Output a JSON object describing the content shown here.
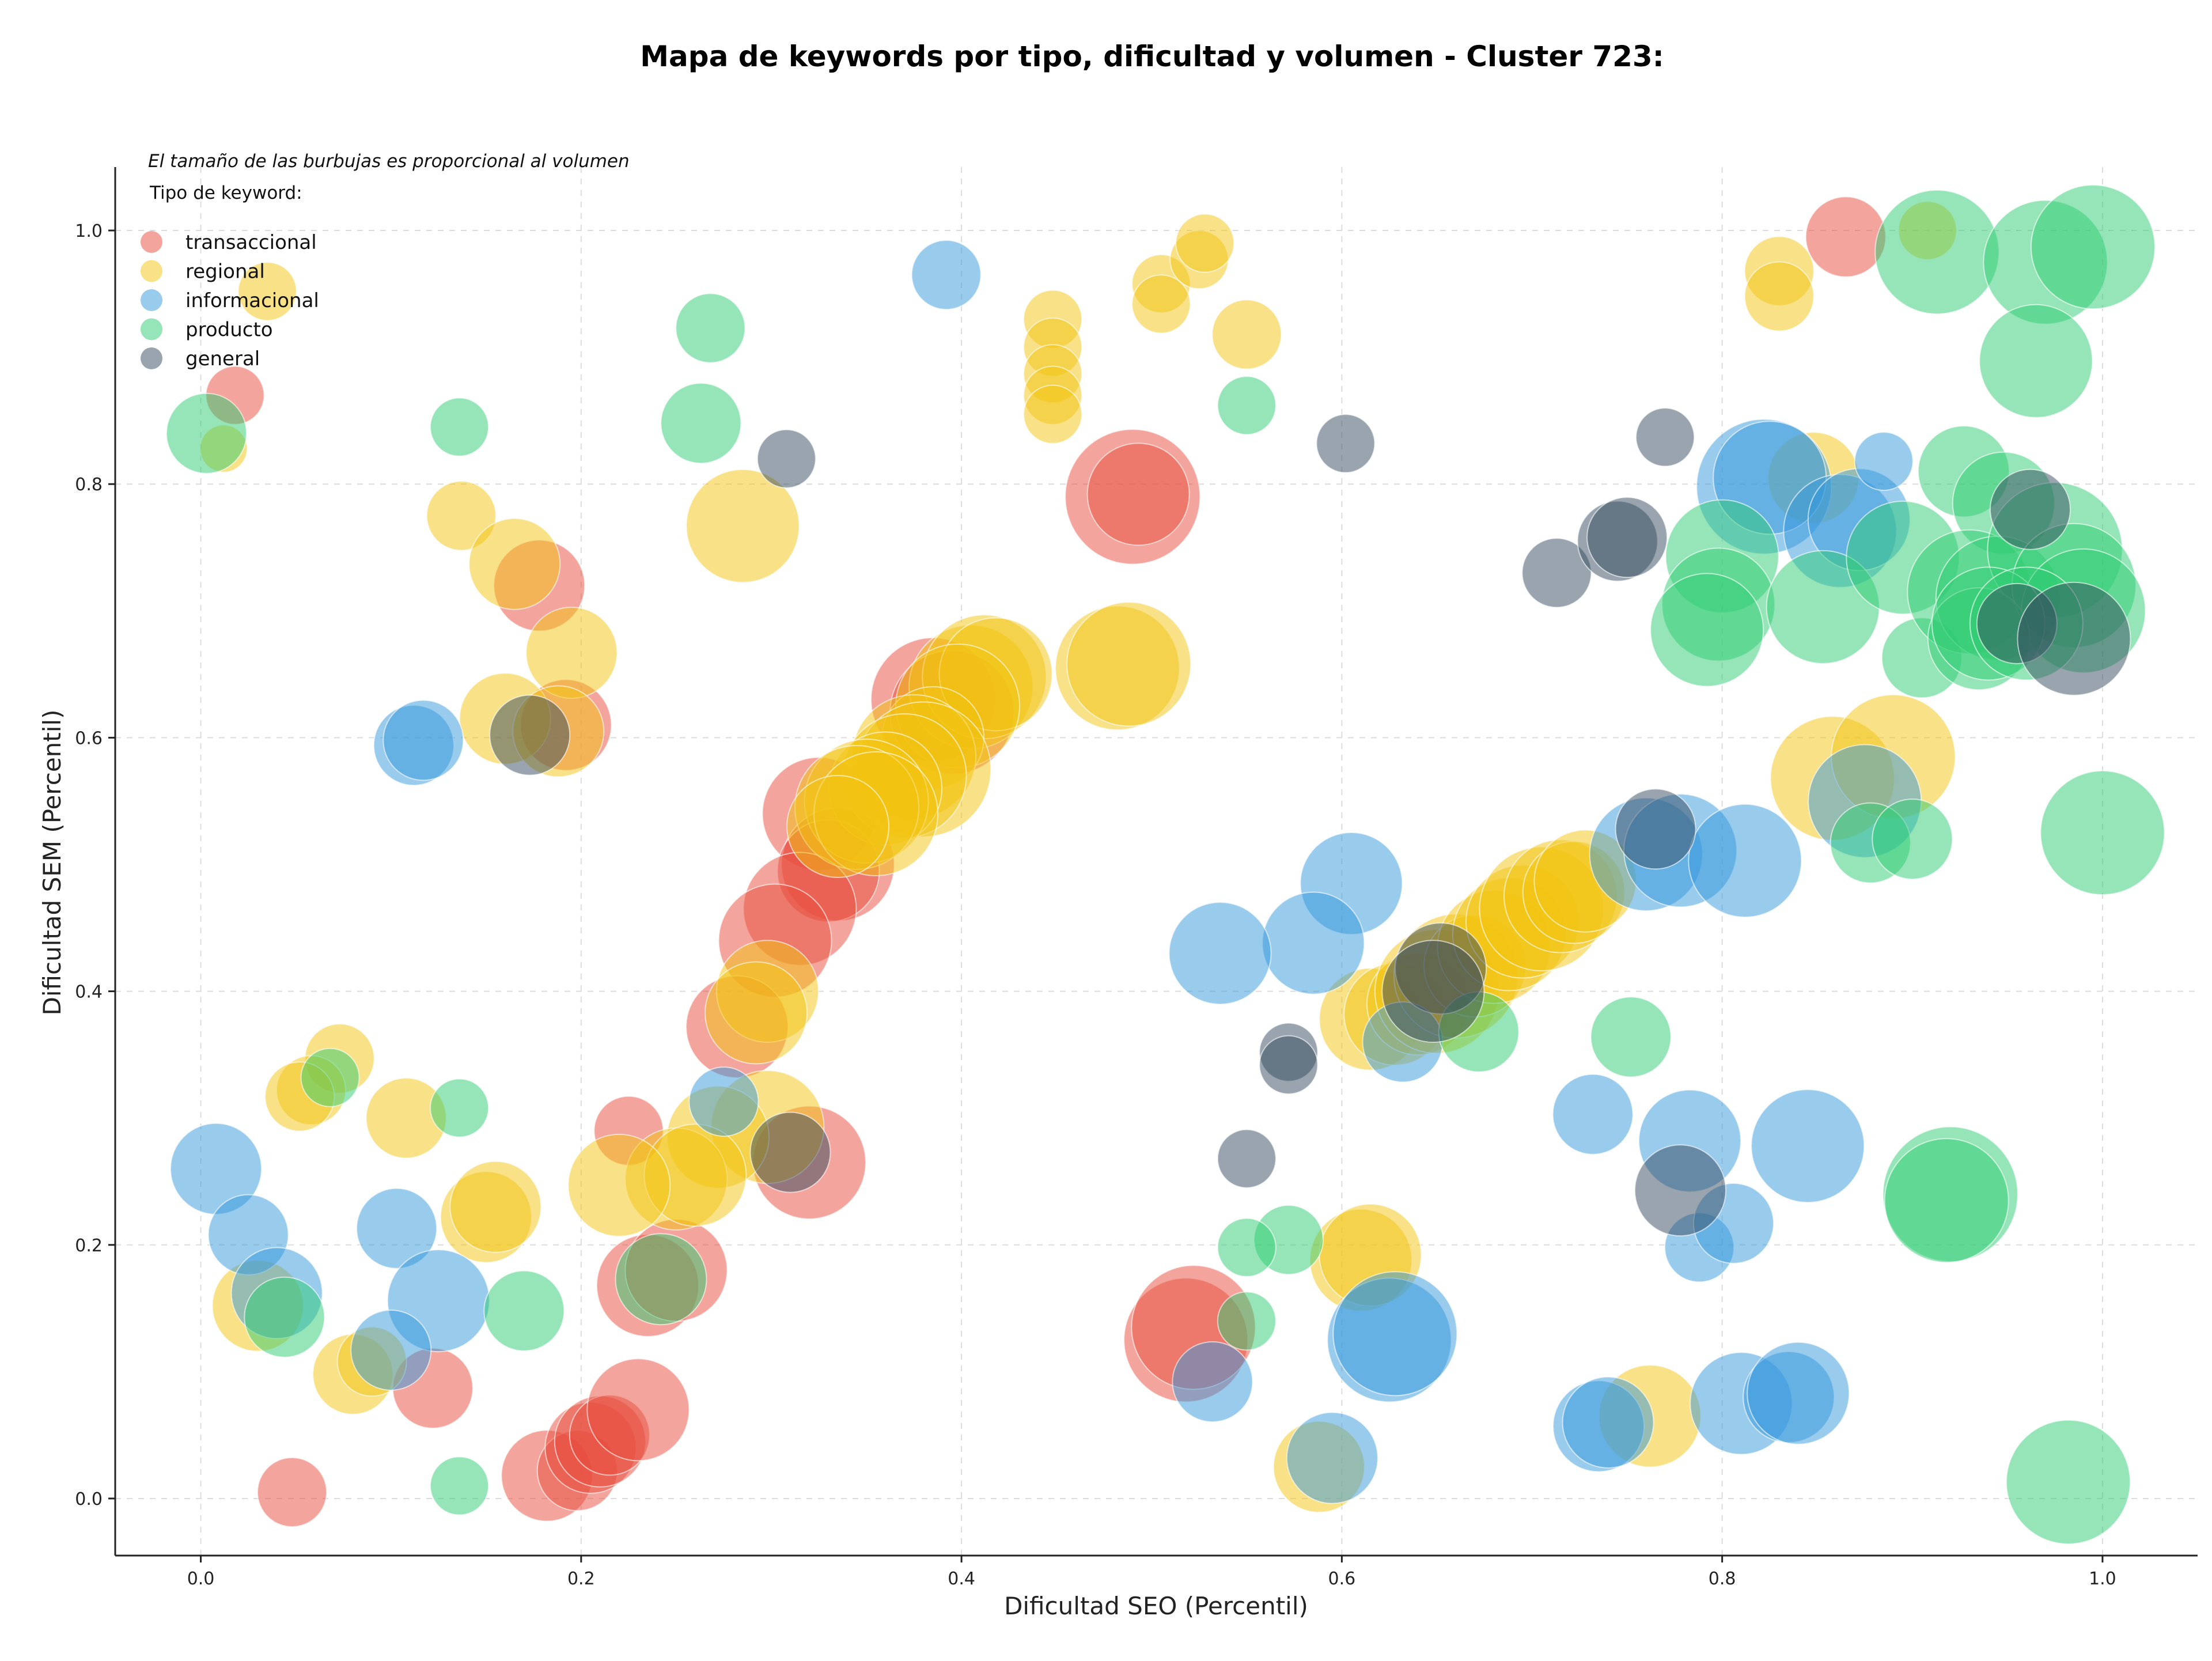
{
  "chart_data": {
    "type": "scatter",
    "title": "Mapa de keywords por tipo, dificultad y volumen - Cluster 723:",
    "xlabel": "Dificultad SEO (Percentil)",
    "ylabel": "Dificultad SEM (Percentil)",
    "xlim": [
      -0.045,
      1.05
    ],
    "ylim": [
      -0.045,
      1.05
    ],
    "xticks": [
      0.0,
      0.2,
      0.4,
      0.6,
      0.8,
      1.0
    ],
    "yticks": [
      0.0,
      0.2,
      0.4,
      0.6,
      0.8,
      1.0
    ],
    "xtick_labels": [
      "0.0",
      "0.2",
      "0.4",
      "0.6",
      "0.8",
      "1.0"
    ],
    "ytick_labels": [
      "0.0",
      "0.2",
      "0.4",
      "0.6",
      "0.8",
      "1.0"
    ],
    "grid": true,
    "legend_position": "top-left",
    "size_note": "El tamaño de las burbujas es proporcional al volumen",
    "legend_title": "Tipo de keyword:",
    "series": [
      {
        "name": "transaccional",
        "color": "#e74c3c",
        "points": [
          [
            0.865,
            0.995,
            5
          ],
          [
            0.018,
            0.87,
            3
          ],
          [
            0.178,
            0.72,
            6
          ],
          [
            0.192,
            0.61,
            6
          ],
          [
            0.49,
            0.79,
            10
          ],
          [
            0.493,
            0.792,
            7
          ],
          [
            0.385,
            0.63,
            9
          ],
          [
            0.395,
            0.62,
            9
          ],
          [
            0.325,
            0.54,
            8
          ],
          [
            0.335,
            0.5,
            8
          ],
          [
            0.33,
            0.495,
            7
          ],
          [
            0.315,
            0.465,
            8
          ],
          [
            0.302,
            0.44,
            8
          ],
          [
            0.282,
            0.372,
            7
          ],
          [
            0.32,
            0.265,
            8
          ],
          [
            0.225,
            0.29,
            4
          ],
          [
            0.235,
            0.168,
            7
          ],
          [
            0.25,
            0.18,
            7
          ],
          [
            0.122,
            0.087,
            5
          ],
          [
            0.048,
            0.005,
            4
          ],
          [
            0.182,
            0.018,
            6
          ],
          [
            0.198,
            0.022,
            5
          ],
          [
            0.205,
            0.04,
            6
          ],
          [
            0.21,
            0.045,
            6
          ],
          [
            0.215,
            0.05,
            5
          ],
          [
            0.23,
            0.07,
            7
          ],
          [
            0.518,
            0.125,
            9
          ],
          [
            0.522,
            0.135,
            9
          ]
        ]
      },
      {
        "name": "regional",
        "color": "#f1c40f",
        "points": [
          [
            0.035,
            0.952,
            3
          ],
          [
            0.012,
            0.828,
            2
          ],
          [
            0.137,
            0.775,
            4
          ],
          [
            0.165,
            0.737,
            6
          ],
          [
            0.195,
            0.667,
            6
          ],
          [
            0.16,
            0.615,
            6
          ],
          [
            0.188,
            0.605,
            6
          ],
          [
            0.285,
            0.767,
            8
          ],
          [
            0.448,
            0.93,
            3
          ],
          [
            0.448,
            0.908,
            3
          ],
          [
            0.448,
            0.887,
            3
          ],
          [
            0.448,
            0.87,
            3
          ],
          [
            0.448,
            0.855,
            3
          ],
          [
            0.505,
            0.958,
            3
          ],
          [
            0.505,
            0.942,
            3
          ],
          [
            0.525,
            0.977,
            3
          ],
          [
            0.528,
            0.99,
            3
          ],
          [
            0.55,
            0.918,
            4
          ],
          [
            0.908,
            1.0,
            3
          ],
          [
            0.83,
            0.968,
            4
          ],
          [
            0.83,
            0.948,
            4
          ],
          [
            0.848,
            0.805,
            6
          ],
          [
            0.482,
            0.655,
            9
          ],
          [
            0.488,
            0.658,
            9
          ],
          [
            0.405,
            0.64,
            9
          ],
          [
            0.412,
            0.648,
            9
          ],
          [
            0.418,
            0.65,
            8
          ],
          [
            0.398,
            0.625,
            9
          ],
          [
            0.385,
            0.6,
            7
          ],
          [
            0.375,
            0.585,
            9
          ],
          [
            0.38,
            0.575,
            10
          ],
          [
            0.37,
            0.57,
            9
          ],
          [
            0.36,
            0.56,
            8
          ],
          [
            0.35,
            0.55,
            9
          ],
          [
            0.345,
            0.545,
            9
          ],
          [
            0.355,
            0.54,
            9
          ],
          [
            0.335,
            0.53,
            7
          ],
          [
            0.298,
            0.4,
            7
          ],
          [
            0.292,
            0.383,
            7
          ],
          [
            0.298,
            0.293,
            8
          ],
          [
            0.272,
            0.285,
            7
          ],
          [
            0.25,
            0.252,
            7
          ],
          [
            0.26,
            0.255,
            7
          ],
          [
            0.22,
            0.247,
            7
          ],
          [
            0.15,
            0.222,
            6
          ],
          [
            0.155,
            0.23,
            6
          ],
          [
            0.108,
            0.3,
            5
          ],
          [
            0.073,
            0.347,
            4
          ],
          [
            0.058,
            0.322,
            4
          ],
          [
            0.052,
            0.317,
            4
          ],
          [
            0.03,
            0.152,
            6
          ],
          [
            0.08,
            0.098,
            5
          ],
          [
            0.09,
            0.108,
            4
          ],
          [
            0.615,
            0.378,
            7
          ],
          [
            0.628,
            0.382,
            7
          ],
          [
            0.64,
            0.39,
            7
          ],
          [
            0.65,
            0.4,
            9
          ],
          [
            0.66,
            0.412,
            9
          ],
          [
            0.67,
            0.42,
            7
          ],
          [
            0.68,
            0.435,
            8
          ],
          [
            0.688,
            0.445,
            8
          ],
          [
            0.695,
            0.455,
            8
          ],
          [
            0.705,
            0.465,
            9
          ],
          [
            0.715,
            0.475,
            8
          ],
          [
            0.722,
            0.478,
            7
          ],
          [
            0.728,
            0.487,
            7
          ],
          [
            0.858,
            0.568,
            9
          ],
          [
            0.89,
            0.585,
            9
          ],
          [
            0.61,
            0.188,
            7
          ],
          [
            0.615,
            0.192,
            7
          ],
          [
            0.588,
            0.025,
            6
          ],
          [
            0.762,
            0.065,
            7
          ]
        ]
      },
      {
        "name": "informacional",
        "color": "#3498db",
        "points": [
          [
            0.392,
            0.965,
            4
          ],
          [
            0.112,
            0.594,
            5
          ],
          [
            0.117,
            0.598,
            5
          ],
          [
            0.822,
            0.798,
            10
          ],
          [
            0.825,
            0.805,
            8
          ],
          [
            0.862,
            0.763,
            8
          ],
          [
            0.872,
            0.772,
            7
          ],
          [
            0.885,
            0.818,
            3
          ],
          [
            0.875,
            0.55,
            8
          ],
          [
            0.76,
            0.508,
            8
          ],
          [
            0.778,
            0.511,
            8
          ],
          [
            0.812,
            0.503,
            8
          ],
          [
            0.605,
            0.485,
            7
          ],
          [
            0.585,
            0.438,
            7
          ],
          [
            0.536,
            0.43,
            7
          ],
          [
            0.632,
            0.36,
            5
          ],
          [
            0.275,
            0.313,
            4
          ],
          [
            0.008,
            0.26,
            6
          ],
          [
            0.025,
            0.208,
            5
          ],
          [
            0.103,
            0.213,
            5
          ],
          [
            0.125,
            0.156,
            7
          ],
          [
            0.04,
            0.162,
            6
          ],
          [
            0.1,
            0.117,
            5
          ],
          [
            0.532,
            0.092,
            5
          ],
          [
            0.595,
            0.032,
            6
          ],
          [
            0.625,
            0.125,
            9
          ],
          [
            0.628,
            0.13,
            9
          ],
          [
            0.732,
            0.303,
            5
          ],
          [
            0.783,
            0.282,
            7
          ],
          [
            0.845,
            0.278,
            8
          ],
          [
            0.788,
            0.198,
            4
          ],
          [
            0.806,
            0.217,
            5
          ],
          [
            0.81,
            0.075,
            7
          ],
          [
            0.835,
            0.08,
            6
          ],
          [
            0.84,
            0.083,
            7
          ],
          [
            0.735,
            0.057,
            6
          ],
          [
            0.74,
            0.06,
            6
          ]
        ]
      },
      {
        "name": "producto",
        "color": "#2ecc71",
        "points": [
          [
            0.003,
            0.84,
            5
          ],
          [
            0.136,
            0.845,
            3
          ],
          [
            0.268,
            0.923,
            4
          ],
          [
            0.263,
            0.848,
            5
          ],
          [
            0.55,
            0.862,
            3
          ],
          [
            0.913,
            0.983,
            9
          ],
          [
            0.97,
            0.975,
            9
          ],
          [
            0.995,
            0.987,
            9
          ],
          [
            0.965,
            0.897,
            8
          ],
          [
            0.927,
            0.81,
            6
          ],
          [
            0.948,
            0.785,
            7
          ],
          [
            0.8,
            0.743,
            8
          ],
          [
            0.798,
            0.705,
            8
          ],
          [
            0.792,
            0.685,
            8
          ],
          [
            0.853,
            0.703,
            8
          ],
          [
            0.895,
            0.742,
            8
          ],
          [
            0.905,
            0.663,
            5
          ],
          [
            0.93,
            0.715,
            9
          ],
          [
            0.945,
            0.71,
            9
          ],
          [
            0.975,
            0.748,
            10
          ],
          [
            0.985,
            0.72,
            9
          ],
          [
            0.99,
            0.7,
            9
          ],
          [
            0.935,
            0.678,
            7
          ],
          [
            0.94,
            0.69,
            8
          ],
          [
            0.96,
            0.69,
            8
          ],
          [
            0.878,
            0.517,
            5
          ],
          [
            0.9,
            0.52,
            5
          ],
          [
            1.0,
            0.525,
            9
          ],
          [
            0.92,
            0.24,
            10
          ],
          [
            0.918,
            0.235,
            9
          ],
          [
            0.982,
            0.013,
            9
          ],
          [
            0.752,
            0.364,
            5
          ],
          [
            0.672,
            0.368,
            5
          ],
          [
            0.572,
            0.204,
            4
          ],
          [
            0.55,
            0.198,
            3
          ],
          [
            0.55,
            0.14,
            3
          ],
          [
            0.136,
            0.308,
            3
          ],
          [
            0.17,
            0.148,
            5
          ],
          [
            0.242,
            0.173,
            6
          ],
          [
            0.044,
            0.143,
            5
          ],
          [
            0.136,
            0.01,
            3
          ],
          [
            0.068,
            0.332,
            3
          ]
        ]
      },
      {
        "name": "general",
        "color": "#34495e",
        "points": [
          [
            0.308,
            0.82,
            3
          ],
          [
            0.173,
            0.602,
            5
          ],
          [
            0.31,
            0.273,
            5
          ],
          [
            0.602,
            0.832,
            3
          ],
          [
            0.77,
            0.837,
            3
          ],
          [
            0.713,
            0.73,
            4
          ],
          [
            0.745,
            0.755,
            5
          ],
          [
            0.75,
            0.758,
            5
          ],
          [
            0.962,
            0.78,
            5
          ],
          [
            0.955,
            0.69,
            5
          ],
          [
            0.985,
            0.678,
            8
          ],
          [
            0.765,
            0.528,
            5
          ],
          [
            0.652,
            0.418,
            6
          ],
          [
            0.648,
            0.4,
            7
          ],
          [
            0.572,
            0.352,
            3
          ],
          [
            0.572,
            0.342,
            3
          ],
          [
            0.55,
            0.268,
            3
          ],
          [
            0.778,
            0.243,
            6
          ]
        ]
      }
    ]
  }
}
